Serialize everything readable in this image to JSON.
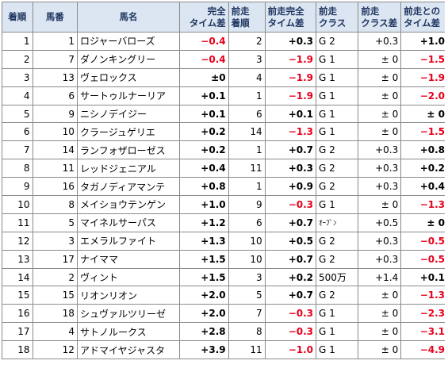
{
  "headers": {
    "rank": "着順",
    "horse_no": "馬番",
    "horse_name": "馬名",
    "time_diff_1": "完全",
    "time_diff_2": "タイム差",
    "prev_rank_1": "前走",
    "prev_rank_2": "着順",
    "prev_time_diff_1": "前走完全",
    "prev_time_diff_2": "タイム差",
    "prev_class_1": "前走",
    "prev_class_2": "クラス",
    "class_diff_1": "前走",
    "class_diff_2": "クラス差",
    "vs_prev_1": "前走との",
    "vs_prev_2": "タイム差"
  },
  "rows": [
    {
      "rank": "1",
      "no": "1",
      "name": "ロジャーバローズ",
      "td": "−0.4",
      "td_neg": true,
      "pr": "2",
      "ptd": "+0.3",
      "ptd_neg": false,
      "cls": "G 2",
      "cd": "+0.3",
      "vs": "+1.0",
      "vs_neg": false
    },
    {
      "rank": "2",
      "no": "7",
      "name": "ダノンキングリー",
      "td": "−0.4",
      "td_neg": true,
      "pr": "3",
      "ptd": "−1.9",
      "ptd_neg": true,
      "cls": "G 1",
      "cd": "± 0",
      "vs": "−1.5",
      "vs_neg": true
    },
    {
      "rank": "3",
      "no": "13",
      "name": "ヴェロックス",
      "td": "±0",
      "td_neg": false,
      "pr": "4",
      "ptd": "−1.9",
      "ptd_neg": true,
      "cls": "G 1",
      "cd": "± 0",
      "vs": "−1.9",
      "vs_neg": true
    },
    {
      "rank": "4",
      "no": "6",
      "name": "サートゥルナーリア",
      "td": "+0.1",
      "td_neg": false,
      "pr": "1",
      "ptd": "−1.9",
      "ptd_neg": true,
      "cls": "G 1",
      "cd": "± 0",
      "vs": "−2.0",
      "vs_neg": true
    },
    {
      "rank": "5",
      "no": "9",
      "name": "ニシノデイジー",
      "td": "+0.1",
      "td_neg": false,
      "pr": "6",
      "ptd": "+0.1",
      "ptd_neg": false,
      "cls": "G 1",
      "cd": "± 0",
      "vs": "± 0",
      "vs_neg": false
    },
    {
      "rank": "6",
      "no": "10",
      "name": "クラージュゲリエ",
      "td": "+0.2",
      "td_neg": false,
      "pr": "14",
      "ptd": "−1.3",
      "ptd_neg": true,
      "cls": "G 1",
      "cd": "± 0",
      "vs": "−1.5",
      "vs_neg": true
    },
    {
      "rank": "7",
      "no": "14",
      "name": "ランフォザローゼス",
      "td": "+0.2",
      "td_neg": false,
      "pr": "1",
      "ptd": "+0.7",
      "ptd_neg": false,
      "cls": "G 2",
      "cd": "+0.3",
      "vs": "+0.8",
      "vs_neg": false
    },
    {
      "rank": "8",
      "no": "11",
      "name": "レッドジェニアル",
      "td": "+0.4",
      "td_neg": false,
      "pr": "11",
      "ptd": "+0.3",
      "ptd_neg": false,
      "cls": "G 2",
      "cd": "+0.3",
      "vs": "+0.2",
      "vs_neg": false
    },
    {
      "rank": "9",
      "no": "16",
      "name": "タガノディアマンテ",
      "td": "+0.8",
      "td_neg": false,
      "pr": "1",
      "ptd": "+0.9",
      "ptd_neg": false,
      "cls": "G 2",
      "cd": "+0.3",
      "vs": "+0.4",
      "vs_neg": false
    },
    {
      "rank": "10",
      "no": "8",
      "name": "メイショウテンゲン",
      "td": "+1.0",
      "td_neg": false,
      "pr": "9",
      "ptd": "−0.3",
      "ptd_neg": true,
      "cls": "G 1",
      "cd": "± 0",
      "vs": "−1.3",
      "vs_neg": true
    },
    {
      "rank": "11",
      "no": "5",
      "name": "マイネルサーパス",
      "td": "+1.2",
      "td_neg": false,
      "pr": "6",
      "ptd": "+0.7",
      "ptd_neg": false,
      "cls": "ｵｰﾌﾟﾝ",
      "cls_small": true,
      "cd": "+0.5",
      "vs": "± 0",
      "vs_neg": false
    },
    {
      "rank": "12",
      "no": "3",
      "name": "エメラルファイト",
      "td": "+1.3",
      "td_neg": false,
      "pr": "10",
      "ptd": "+0.5",
      "ptd_neg": false,
      "cls": "G 2",
      "cd": "+0.3",
      "vs": "−0.5",
      "vs_neg": true
    },
    {
      "rank": "13",
      "no": "17",
      "name": "ナイママ",
      "td": "+1.5",
      "td_neg": false,
      "pr": "10",
      "ptd": "+0.7",
      "ptd_neg": false,
      "cls": "G 2",
      "cd": "+0.3",
      "vs": "−0.5",
      "vs_neg": true
    },
    {
      "rank": "14",
      "no": "2",
      "name": "ヴィント",
      "td": "+1.5",
      "td_neg": false,
      "pr": "3",
      "ptd": "+0.2",
      "ptd_neg": false,
      "cls": "500万",
      "cd": "+1.4",
      "vs": "+0.1",
      "vs_neg": false
    },
    {
      "rank": "15",
      "no": "15",
      "name": "リオンリオン",
      "td": "+2.0",
      "td_neg": false,
      "pr": "5",
      "ptd": "+0.7",
      "ptd_neg": false,
      "cls": "G 2",
      "cd": "± 0",
      "vs": "−1.3",
      "vs_neg": true
    },
    {
      "rank": "16",
      "no": "18",
      "name": "シュヴァルツリーゼ",
      "td": "+2.0",
      "td_neg": false,
      "pr": "7",
      "ptd": "−0.3",
      "ptd_neg": true,
      "cls": "G 1",
      "cd": "± 0",
      "vs": "−2.3",
      "vs_neg": true
    },
    {
      "rank": "17",
      "no": "4",
      "name": "サトノルークス",
      "td": "+2.8",
      "td_neg": false,
      "pr": "8",
      "ptd": "−0.3",
      "ptd_neg": true,
      "cls": "G 1",
      "cd": "± 0",
      "vs": "−3.1",
      "vs_neg": true
    },
    {
      "rank": "18",
      "no": "12",
      "name": "アドマイヤジャスタ",
      "td": "+3.9",
      "td_neg": false,
      "pr": "11",
      "ptd": "−1.0",
      "ptd_neg": true,
      "cls": "G 1",
      "cd": "± 0",
      "vs": "−4.9",
      "vs_neg": true
    }
  ],
  "colors": {
    "header_bg": "#dbe6f2",
    "header_text": "#1f3560",
    "negative": "#e8001c",
    "grid": "#8a8a8a"
  }
}
